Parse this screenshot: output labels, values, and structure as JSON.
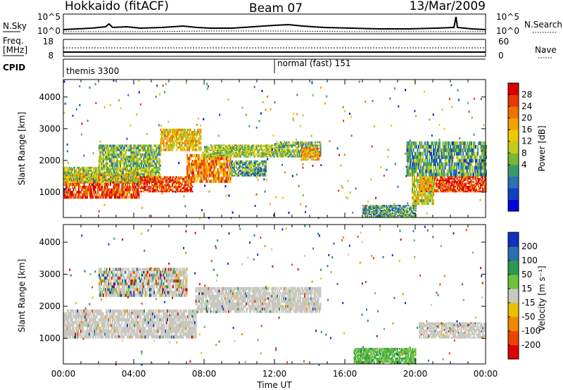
{
  "header": {
    "station": "Hokkaido (fitACF)",
    "beam": "Beam 07",
    "date": "13/Mar/2009"
  },
  "noise_panel": {
    "left_label": "N.Sky",
    "right_label": "N.Search",
    "left_ticks": [
      "10^5",
      "10^0"
    ],
    "right_ticks": [
      "10^5",
      "10^0"
    ]
  },
  "freq_panel": {
    "left_label_line1": "Freq.",
    "left_label_line2": "[MHz]",
    "left_ticks": [
      "18",
      "8"
    ],
    "right_label": "Nave",
    "right_ticks": [
      "60",
      "0"
    ]
  },
  "cpid_panel": {
    "label": "CPID",
    "modes": [
      {
        "name": "themis 3300",
        "start_hour": 0
      },
      {
        "name": "normal (fast) 151",
        "start_hour": 12
      }
    ]
  },
  "time_axis": {
    "label": "Time UT",
    "ticks": [
      "00:00",
      "04:00",
      "08:00",
      "12:00",
      "16:00",
      "20:00",
      "00:00"
    ]
  },
  "power_panel": {
    "ylabel": "Slant Range [km]",
    "yticks": [
      "4000",
      "3000",
      "2000",
      "1000"
    ],
    "colorbar_label": "Power [dB]",
    "colorbar_ticks": [
      "28",
      "24",
      "20",
      "16",
      "12",
      "8",
      "4"
    ],
    "colors": [
      "#0000dd",
      "#1040c0",
      "#2a72b0",
      "#3a9a6a",
      "#7ab830",
      "#c0cc20",
      "#f0c800",
      "#f5a000",
      "#f07000",
      "#e83800",
      "#dd0000"
    ]
  },
  "velocity_panel": {
    "ylabel": "Slant Range [km]",
    "yticks": [
      "4000",
      "3000",
      "2000",
      "1000"
    ],
    "colorbar_label": "Velocity [m s⁻¹]",
    "colorbar_ticks": [
      "200",
      "100",
      "50",
      "15",
      "-15",
      "-50",
      "-100",
      "-200"
    ],
    "colors": [
      "#1030c0",
      "#2a70b0",
      "#2a9a50",
      "#70c040",
      "#c8c8c0",
      "#e8c000",
      "#f08800",
      "#f04000",
      "#dd0000"
    ],
    "ground_scatter_color": "#c8c8c0"
  },
  "chart_data": {
    "type": "heatmap",
    "title": "Hokkaido (fitACF)  Beam 07  13/Mar/2009",
    "xlabel": "Time UT",
    "ylabel": "Slant Range [km]",
    "xlim_hours": [
      0,
      24
    ],
    "ylim_km": [
      200,
      4550
    ],
    "x_ticks": [
      "00:00",
      "04:00",
      "08:00",
      "12:00",
      "16:00",
      "20:00",
      "00:00"
    ],
    "y_ticks": [
      1000,
      2000,
      3000,
      4000
    ],
    "power_colorbar": {
      "label": "Power [dB]",
      "range": [
        0,
        30
      ],
      "ticks": [
        4,
        8,
        12,
        16,
        20,
        24,
        28
      ]
    },
    "velocity_colorbar": {
      "label": "Velocity [m s⁻¹]",
      "ticks": [
        200,
        100,
        50,
        15,
        -15,
        -50,
        -100,
        -200
      ]
    },
    "power_regions": [
      {
        "t0": 0.0,
        "t1": 4.3,
        "r0": 800,
        "r1": 1600,
        "power_db": 26
      },
      {
        "t0": 0.0,
        "t1": 5.5,
        "r0": 1300,
        "r1": 1800,
        "power_db": 14
      },
      {
        "t0": 4.3,
        "t1": 7.3,
        "r0": 1000,
        "r1": 1500,
        "power_db": 26
      },
      {
        "t0": 2.0,
        "t1": 5.5,
        "r0": 1800,
        "r1": 2500,
        "power_db": 12
      },
      {
        "t0": 5.5,
        "t1": 7.8,
        "r0": 2300,
        "r1": 3000,
        "power_db": 18
      },
      {
        "t0": 7.0,
        "t1": 9.5,
        "r0": 1300,
        "r1": 2200,
        "power_db": 22
      },
      {
        "t0": 9.5,
        "t1": 11.5,
        "r0": 1500,
        "r1": 2000,
        "power_db": 10
      },
      {
        "t0": 8.0,
        "t1": 12.0,
        "r0": 2100,
        "r1": 2500,
        "power_db": 14
      },
      {
        "t0": 12.0,
        "t1": 14.6,
        "r0": 2100,
        "r1": 2600,
        "power_db": 12
      },
      {
        "t0": 13.5,
        "t1": 14.6,
        "r0": 2000,
        "r1": 2400,
        "power_db": 20
      },
      {
        "t0": 17.0,
        "t1": 20.0,
        "r0": 200,
        "r1": 600,
        "power_db": 10
      },
      {
        "t0": 20.2,
        "t1": 24.0,
        "r0": 1000,
        "r1": 1500,
        "power_db": 26
      },
      {
        "t0": 19.5,
        "t1": 24.0,
        "r0": 1500,
        "r1": 2600,
        "power_db": 10
      },
      {
        "t0": 19.8,
        "t1": 21.0,
        "r0": 600,
        "r1": 1500,
        "power_db": 16
      }
    ],
    "velocity_regions": [
      {
        "t0": 0.0,
        "t1": 7.5,
        "r0": 1000,
        "r1": 1900,
        "class": "ground_scatter"
      },
      {
        "t0": 7.5,
        "t1": 14.6,
        "r0": 1800,
        "r1": 2600,
        "class": "ground_scatter"
      },
      {
        "t0": 20.2,
        "t1": 24.0,
        "r0": 1000,
        "r1": 1500,
        "class": "ground_scatter"
      },
      {
        "t0": 2.0,
        "t1": 7.0,
        "r0": 2300,
        "r1": 3200,
        "class": "mixed"
      },
      {
        "t0": 16.5,
        "t1": 20.0,
        "r0": 200,
        "r1": 700,
        "velocity_ms": 30
      }
    ]
  }
}
